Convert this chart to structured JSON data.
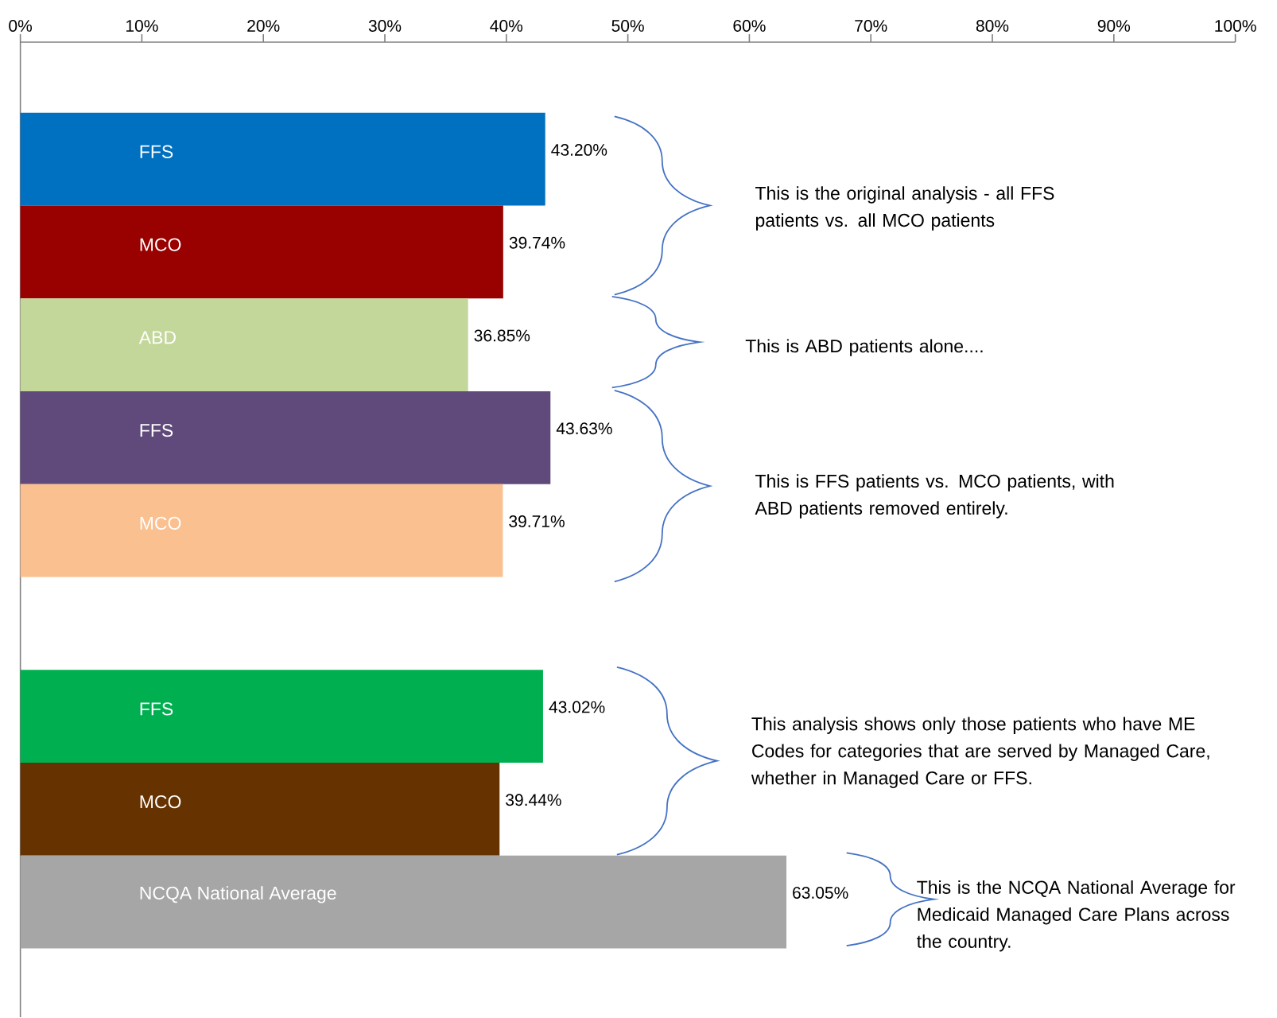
{
  "chart_data": {
    "type": "bar",
    "orientation": "horizontal",
    "categories": [
      "FFS",
      "MCO",
      "ABD",
      "FFS",
      "MCO",
      null,
      "FFS",
      "MCO",
      "NCQA National Average"
    ],
    "values": [
      43.2,
      39.74,
      36.85,
      43.63,
      39.71,
      null,
      43.02,
      39.44,
      63.05
    ],
    "value_labels": [
      "43.20%",
      "39.74%",
      "36.85%",
      "43.63%",
      "39.71%",
      null,
      "43.02%",
      "39.44%",
      "63.05%"
    ],
    "colors": [
      "#0070c0",
      "#990000",
      "#c4d79b",
      "#604a7b",
      "#fac090",
      null,
      "#00b050",
      "#663300",
      "#a6a6a6"
    ],
    "xlim": [
      0,
      100
    ],
    "xticks": [
      {
        "value": 0,
        "label": "0%"
      },
      {
        "value": 10,
        "label": "10%"
      },
      {
        "value": 20,
        "label": "20%"
      },
      {
        "value": 30,
        "label": "30%"
      },
      {
        "value": 40,
        "label": "40%"
      },
      {
        "value": 50,
        "label": "50%"
      },
      {
        "value": 60,
        "label": "60%"
      },
      {
        "value": 70,
        "label": "70%"
      },
      {
        "value": 80,
        "label": "80%"
      },
      {
        "value": 90,
        "label": "90%"
      },
      {
        "value": 100,
        "label": "100%"
      }
    ],
    "annotations": [
      "This is the original analysis - all FFS patients vs. all MCO patients",
      "This is ABD patients alone....",
      "This is FFS patients vs. MCO patients, with ABD patients removed entirely.",
      "This analysis shows  only those patients who have ME Codes for categories that are served by Managed Care, whether in Managed Care or FFS.",
      "This is the NCQA National Average for Medicaid Managed Care Plans across the country."
    ]
  }
}
